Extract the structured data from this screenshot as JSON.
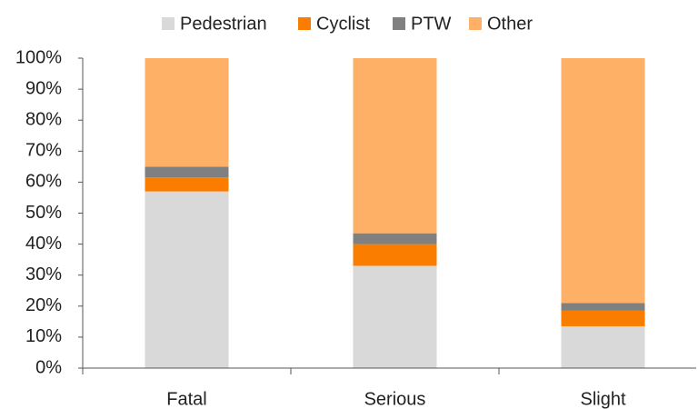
{
  "chart_data": {
    "type": "stacked_bar",
    "categories": [
      "Fatal",
      "Serious",
      "Slight"
    ],
    "series": [
      {
        "name": "Pedestrian",
        "color": "#d9d9d9",
        "values": [
          57,
          33,
          13.5
        ]
      },
      {
        "name": "Cyclist",
        "color": "#fa7d00",
        "values": [
          4.5,
          7,
          5
        ]
      },
      {
        "name": "PTW",
        "color": "#808080",
        "values": [
          3.5,
          3.5,
          2.5
        ]
      },
      {
        "name": "Other",
        "color": "#fdb066",
        "values": [
          35,
          56.5,
          79
        ]
      }
    ],
    "ylim": [
      0,
      100
    ],
    "yticks": [
      {
        "value": 0,
        "label": "0%"
      },
      {
        "value": 10,
        "label": "10%"
      },
      {
        "value": 20,
        "label": "20%"
      },
      {
        "value": 30,
        "label": "30%"
      },
      {
        "value": 40,
        "label": "40%"
      },
      {
        "value": 50,
        "label": "50%"
      },
      {
        "value": 60,
        "label": "60%"
      },
      {
        "value": 70,
        "label": "70%"
      },
      {
        "value": 80,
        "label": "80%"
      },
      {
        "value": 90,
        "label": "90%"
      },
      {
        "value": 100,
        "label": "100%"
      }
    ],
    "legend": "top"
  }
}
